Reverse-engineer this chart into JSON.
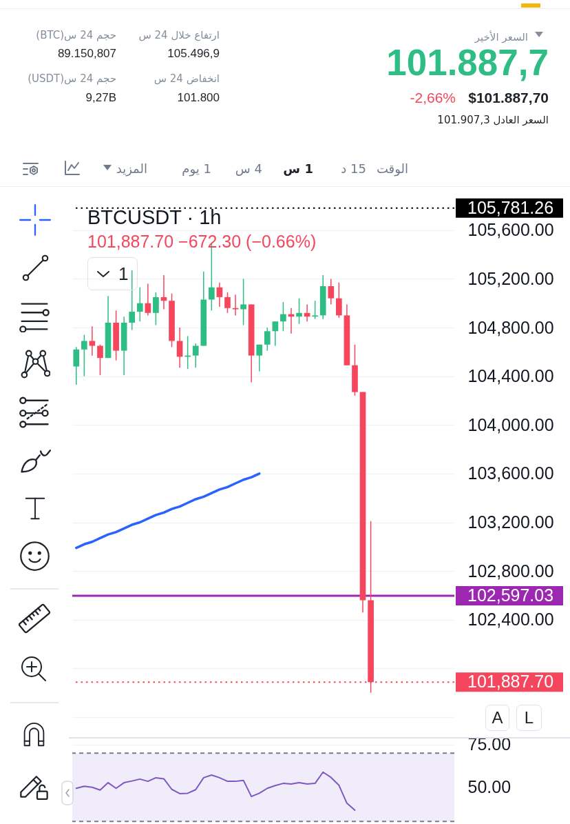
{
  "chart_data": [
    {
      "type": "other",
      "annotations": [
        "السعر الأخير",
        "101.887,7",
        "$101.887,70",
        "-2,66%",
        "السعر العادل 101.907,3",
        "ارتفاع خلال 24 س",
        "105.496,9",
        "انخفاض 24 س",
        "101.800",
        "حجم 24 س(BTC)",
        "89.150,807",
        "حجم 24 س(USDT)",
        "9,27B",
        "الوقت",
        "15 د",
        "1 س",
        "4 س",
        "1 يوم",
        "المزيد"
      ]
    },
    {
      "type": "candlestick",
      "title": "BTCUSDT · 1h",
      "subtitle": "101,887.70 −672.30 (−0.66%)",
      "categories": [
        null,
        null,
        null,
        null,
        null,
        null,
        null,
        null,
        null,
        null,
        null,
        null,
        null,
        null,
        null,
        null,
        null,
        null,
        null,
        null,
        null,
        null,
        null,
        null,
        null,
        null,
        null,
        null,
        null,
        null,
        null,
        null,
        null,
        null,
        null,
        null,
        null,
        null,
        null,
        null,
        null,
        null,
        null,
        null,
        null,
        null,
        null,
        null
      ],
      "ohlc": [
        [
          104480,
          104640,
          104330,
          104620
        ],
        [
          104620,
          104740,
          104400,
          104690
        ],
        [
          104690,
          104810,
          104570,
          104650
        ],
        [
          104650,
          104660,
          104410,
          104550
        ],
        [
          104550,
          105060,
          104550,
          104840
        ],
        [
          104840,
          104940,
          104530,
          104610
        ],
        [
          104610,
          104890,
          104410,
          104840
        ],
        [
          104840,
          105270,
          104780,
          104930
        ],
        [
          104930,
          105130,
          104850,
          105000
        ],
        [
          105000,
          105160,
          104900,
          104920
        ],
        [
          104920,
          105090,
          104820,
          105050
        ],
        [
          105050,
          105230,
          104950,
          105020
        ],
        [
          105020,
          105080,
          104640,
          104690
        ],
        [
          104690,
          104800,
          104470,
          104560
        ],
        [
          104560,
          104730,
          104460,
          104570
        ],
        [
          104570,
          104670,
          104470,
          104650
        ],
        [
          104650,
          105260,
          104650,
          105030
        ],
        [
          105030,
          105490,
          104940,
          105130
        ],
        [
          105130,
          105170,
          104970,
          105050
        ],
        [
          105050,
          105090,
          104920,
          104960
        ],
        [
          104960,
          105070,
          104900,
          104950
        ],
        [
          104950,
          105200,
          104820,
          104990
        ],
        [
          104990,
          104990,
          104350,
          104570
        ],
        [
          104570,
          104660,
          104440,
          104660
        ],
        [
          104660,
          104800,
          104610,
          104770
        ],
        [
          104770,
          104850,
          104650,
          104850
        ],
        [
          104850,
          105010,
          104770,
          104910
        ],
        [
          104910,
          104960,
          104750,
          104890
        ],
        [
          104890,
          105040,
          104830,
          104920
        ],
        [
          104920,
          104990,
          104850,
          104890
        ],
        [
          104890,
          105020,
          104870,
          104900
        ],
        [
          104900,
          105230,
          104870,
          105140
        ],
        [
          105140,
          105200,
          104990,
          105040
        ],
        [
          105040,
          105170,
          104880,
          104900
        ],
        [
          104900,
          104990,
          104490,
          104490
        ],
        [
          104490,
          104660,
          104240,
          104270
        ],
        [
          104270,
          104270,
          102460,
          102560
        ],
        [
          102560,
          103210,
          101800,
          101887.7
        ],
        null,
        null,
        null,
        null,
        null,
        null,
        null,
        null,
        null,
        null
      ],
      "colors": [
        "#2ebd85",
        "#2ebd85",
        "#f6465d",
        "#f6465d",
        "#2ebd85",
        "#f6465d",
        "#2ebd85",
        "#2ebd85",
        "#2ebd85",
        "#f6465d",
        "#2ebd85",
        "#f6465d",
        "#f6465d",
        "#f6465d",
        "#2ebd85",
        "#2ebd85",
        "#2ebd85",
        "#2ebd85",
        "#f6465d",
        "#f6465d",
        "#f6465d",
        "#2ebd85",
        "#f6465d",
        "#2ebd85",
        "#2ebd85",
        "#2ebd85",
        "#2ebd85",
        "#f6465d",
        "#2ebd85",
        "#f6465d",
        "#2ebd85",
        "#2ebd85",
        "#f6465d",
        "#f6465d",
        "#f6465d",
        "#f6465d",
        "#f6465d",
        "#f6465d",
        null,
        null,
        null,
        null,
        null,
        null,
        null,
        null,
        null,
        null
      ],
      "series": [
        {
          "type": "line",
          "color": "#2962ff",
          "values": [
            102990,
            103020,
            103040,
            103070,
            103100,
            103120,
            103150,
            103180,
            103200,
            103230,
            103260,
            103280,
            103310,
            103330,
            103360,
            103390,
            103410,
            103440,
            103470,
            103490,
            103520,
            103550,
            103570,
            103600,
            null,
            null,
            null,
            null,
            null,
            null,
            null,
            null,
            null,
            null,
            null,
            null,
            null,
            null,
            null,
            null,
            null,
            null,
            null,
            null,
            null,
            null,
            null,
            null
          ]
        }
      ],
      "ylim": [
        101430,
        105950
      ],
      "yticks": [
        {
          "value": 101600,
          "label": null
        },
        {
          "value": 102000,
          "label": null
        },
        {
          "value": 102400,
          "label": "102,400.00"
        },
        {
          "value": 102800,
          "label": "102,800.00"
        },
        {
          "value": 103200,
          "label": "103,200.00"
        },
        {
          "value": 103600,
          "label": "103,600.00"
        },
        {
          "value": 104000,
          "label": "104,000.00"
        },
        {
          "value": 104400,
          "label": "104,400.00"
        },
        {
          "value": 104800,
          "label": "104,800.00"
        },
        {
          "value": 105200,
          "label": "105,200.00"
        },
        {
          "value": 105600,
          "label": "105,600.00"
        }
      ],
      "grid": "y",
      "tick_labels": "y",
      "ref_lines": [
        {
          "axis": "y",
          "value": 105781.26,
          "label": "105,781.26",
          "color": "#000000",
          "line_style": "dotted"
        },
        {
          "axis": "y",
          "value": 102597.03,
          "label": "102,597.03",
          "color": "#9c27b0",
          "line_style": "solid"
        },
        {
          "axis": "y",
          "value": 101887.7,
          "label": "101,887.70",
          "color": "#f6465d",
          "line_style": "dotted"
        }
      ],
      "annotations": [
        "1",
        "A",
        "L"
      ]
    },
    {
      "type": "line",
      "categories": [
        null,
        null,
        null,
        null,
        null,
        null,
        null,
        null,
        null,
        null,
        null,
        null,
        null,
        null,
        null,
        null,
        null,
        null,
        null,
        null,
        null,
        null,
        null,
        null,
        null,
        null,
        null,
        null,
        null,
        null,
        null,
        null,
        null,
        null,
        null,
        null,
        null,
        null,
        null,
        null,
        null,
        null,
        null,
        null,
        null,
        null,
        null,
        null
      ],
      "series": [
        {
          "color": "#7e57c2",
          "values": [
            49.4,
            50.6,
            50.0,
            48.4,
            52.7,
            49.4,
            52.7,
            53.7,
            54.8,
            53.5,
            55.6,
            55.0,
            48.8,
            46.3,
            46.5,
            48.6,
            55.6,
            57.2,
            55.6,
            53.5,
            53.5,
            54.1,
            44.6,
            46.5,
            49.4,
            51.0,
            52.3,
            51.9,
            52.7,
            51.9,
            52.3,
            58.9,
            55.8,
            51.2,
            40.7,
            36.6,
            null,
            null,
            null,
            null,
            null,
            null,
            null,
            null,
            null,
            null,
            null,
            null
          ]
        }
      ],
      "ylim": [
        28.5,
        79
      ],
      "yticks": [
        {
          "value": 75,
          "label": "75.00"
        },
        {
          "value": 50,
          "label": "50.00"
        }
      ],
      "grid": "y",
      "tick_labels": "y",
      "bands": [
        {
          "axis": "y",
          "from": 30,
          "to": 70,
          "color": "#f0ecfa"
        }
      ],
      "ref_lines": [
        {
          "axis": "y",
          "value": 70,
          "color": "#787b86",
          "line_style": "dashed"
        },
        {
          "axis": "y",
          "value": 30,
          "color": "#787b86",
          "line_style": "dashed"
        }
      ]
    }
  ]
}
